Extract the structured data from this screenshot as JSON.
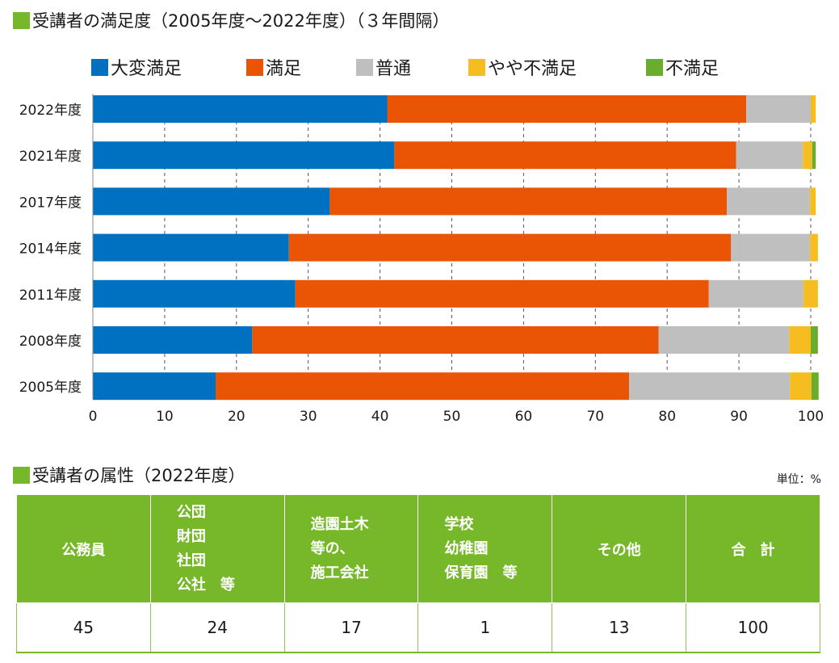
{
  "chart_title": "受講者の満足度（2005年度〜2022年度）（３年間隔）",
  "colors": {
    "accent_green": "#76b82a",
    "series": [
      "#0070c0",
      "#e95504",
      "#bfbfbf",
      "#f6bd21",
      "#6aad2d"
    ]
  },
  "chart_data": {
    "type": "bar",
    "orientation": "horizontal",
    "stacked": true,
    "title": "受講者の満足度（2005年度〜2022年度）（３年間隔）",
    "categories": [
      "2022年度",
      "2021年度",
      "2017年度",
      "2014年度",
      "2011年度",
      "2008年度",
      "2005年度"
    ],
    "series": [
      {
        "name": "大変満足",
        "values": [
          41,
          42,
          33,
          27.3,
          28.2,
          22.2,
          17.1
        ]
      },
      {
        "name": "満足",
        "values": [
          50,
          47.6,
          55.3,
          61.6,
          57.6,
          56.6,
          57.6
        ]
      },
      {
        "name": "普通",
        "values": [
          9,
          9.3,
          11.6,
          11,
          13.2,
          18.2,
          22.4
        ]
      },
      {
        "name": "やや不満足",
        "values": [
          0.7,
          1.3,
          0.8,
          1.1,
          2,
          3,
          3
        ]
      },
      {
        "name": "不満足",
        "values": [
          0,
          0.5,
          0,
          0,
          0,
          1,
          1
        ]
      }
    ],
    "xlim": [
      0,
      100
    ],
    "xticks": [
      0,
      10,
      20,
      30,
      40,
      50,
      60,
      70,
      80,
      90,
      100
    ],
    "grid": "vertical dashed",
    "legend": "top"
  },
  "table": {
    "title": "受講者の属性（2022年度）",
    "unit": "単位：%",
    "headers": [
      "公務員",
      "公団\n財団\n社団\n公社　等",
      "造園土木\n等の、\n施工会社",
      "学校\n幼稚園\n保育園　等",
      "その他",
      "合　計"
    ],
    "values": [
      "45",
      "24",
      "17",
      "1",
      "13",
      "100"
    ]
  }
}
